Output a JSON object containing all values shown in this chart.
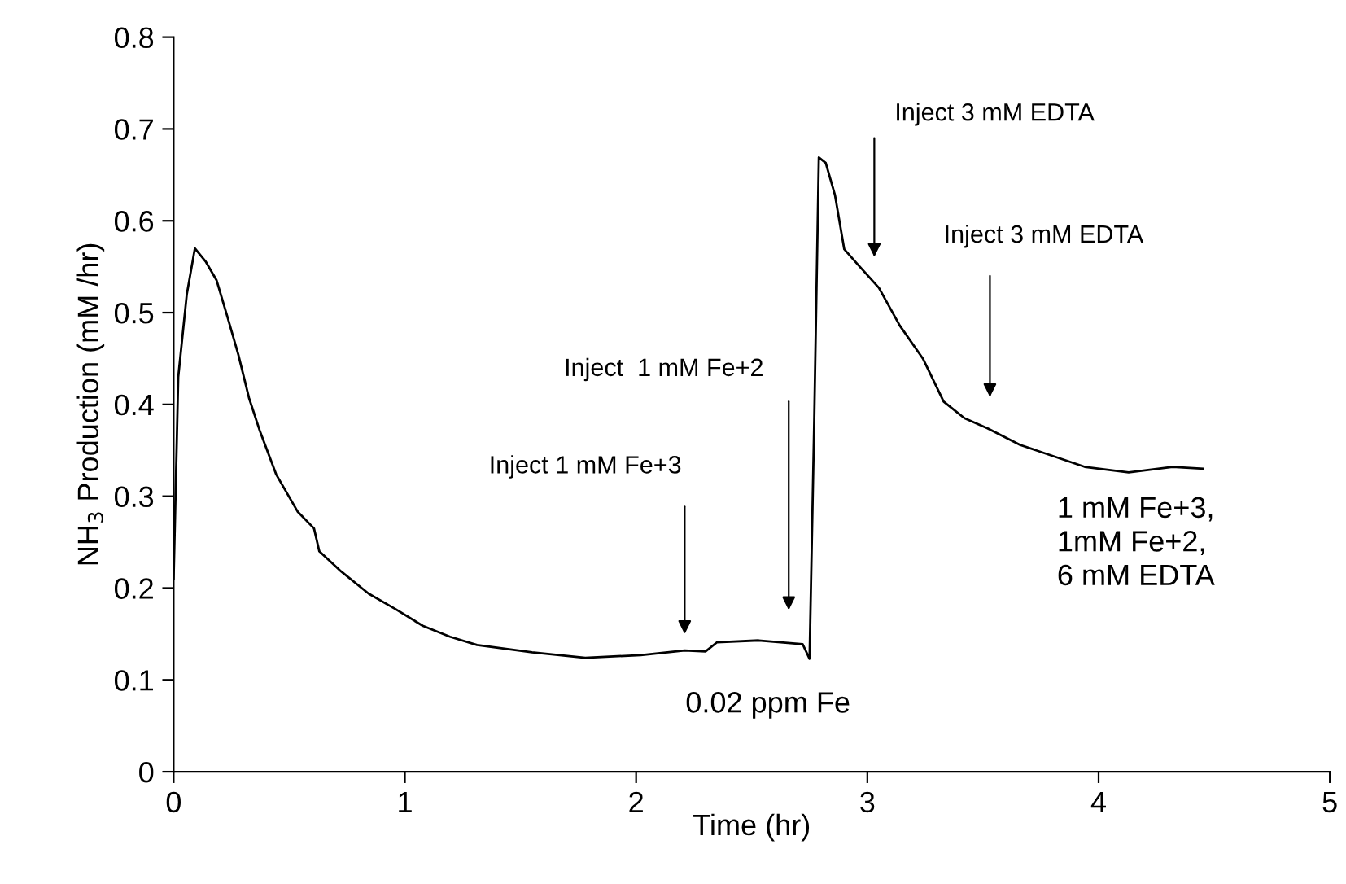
{
  "chart_data": {
    "type": "line",
    "xlabel": "Time (hr)",
    "ylabel": "NH$_{3}$ Production (mM /hr)",
    "xlim": [
      0,
      5
    ],
    "xticks": [
      0,
      1,
      2,
      3,
      4,
      5
    ],
    "ylim": [
      0,
      0.8
    ],
    "yticks": [
      0,
      0.1,
      0.2,
      0.3,
      0.4,
      0.5,
      0.6,
      0.7,
      0.8
    ],
    "grid": false,
    "marker": "none",
    "line_style": "solid",
    "series": [
      {
        "color": "#000000",
        "x": [
          0,
          0.02,
          0.057,
          0.092,
          0.14,
          0.186,
          0.233,
          0.28,
          0.326,
          0.373,
          0.443,
          0.537,
          0.607,
          0.63,
          0.725,
          0.843,
          0.96,
          1.077,
          1.195,
          1.312,
          1.55,
          1.78,
          2.02,
          2.21,
          2.3,
          2.35,
          2.53,
          2.72,
          2.75,
          2.77,
          2.79,
          2.82,
          2.86,
          2.9,
          2.96,
          3.05,
          3.14,
          3.24,
          3.33,
          3.42,
          3.52,
          3.66,
          3.8,
          3.94,
          4.13,
          4.32,
          4.45
        ],
        "values": [
          0.21,
          0.43,
          0.52,
          0.57,
          0.555,
          0.535,
          0.495,
          0.454,
          0.407,
          0.371,
          0.324,
          0.283,
          0.265,
          0.24,
          0.218,
          0.194,
          0.177,
          0.159,
          0.147,
          0.138,
          0.13,
          0.124,
          0.127,
          0.132,
          0.131,
          0.141,
          0.143,
          0.139,
          0.123,
          0.379,
          0.669,
          0.663,
          0.628,
          0.569,
          0.552,
          0.527,
          0.486,
          0.45,
          0.403,
          0.385,
          0.374,
          0.356,
          0.344,
          0.332,
          0.326,
          0.332,
          0.33
        ]
      }
    ],
    "annotations": [
      "Inject 1 mM Fe+3",
      "Inject  1 mM Fe+2",
      "Inject 3 mM EDTA",
      "Inject 3 mM EDTA",
      "0.02 ppm Fe",
      "1 mM Fe+3,\n1mM Fe+2,\n6 mM EDTA"
    ]
  }
}
